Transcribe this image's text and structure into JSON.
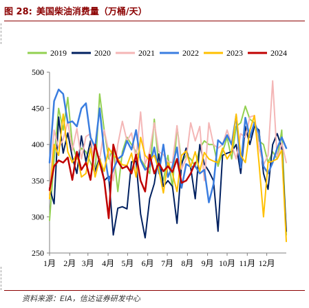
{
  "title": {
    "number": "图 28:",
    "text": "美国柴油消费量（万桶/天）"
  },
  "footer": {
    "source": "资料来源：EIA，信达证券研发中心"
  },
  "chart_data": {
    "type": "line",
    "title": "美国柴油消费量（万桶/天）",
    "xlabel": "",
    "ylabel": "",
    "ylim": [
      250,
      500
    ],
    "yticks": [
      250,
      300,
      350,
      400,
      450,
      500
    ],
    "xlim": [
      1,
      53
    ],
    "xticks": [
      {
        "label": "1月",
        "week": 1
      },
      {
        "label": "2月",
        "week": 5.43
      },
      {
        "label": "3月",
        "week": 9.43
      },
      {
        "label": "4月",
        "week": 13.86
      },
      {
        "label": "5月",
        "week": 18.14
      },
      {
        "label": "6月",
        "week": 22.57
      },
      {
        "label": "7月",
        "week": 26.86
      },
      {
        "label": "8月",
        "week": 31.29
      },
      {
        "label": "9月",
        "week": 35.71
      },
      {
        "label": "10月",
        "week": 40
      },
      {
        "label": "11月",
        "week": 44.43
      },
      {
        "label": "12月",
        "week": 48.71
      }
    ],
    "grid": false,
    "legend_position": "top",
    "series": [
      {
        "name": "2019",
        "color": "#92d050",
        "width": 2,
        "values": [
          295,
          380,
          450,
          420,
          465,
          400,
          380,
          395,
          390,
          375,
          360,
          470,
          420,
          380,
          395,
          335,
          390,
          410,
          400,
          390,
          380,
          370,
          360,
          435,
          370,
          350,
          385,
          340,
          425,
          375,
          385,
          380,
          370,
          395,
          405,
          400,
          400,
          370,
          390,
          410,
          380,
          425,
          430,
          453,
          435,
          430,
          405,
          400,
          375,
          390,
          380,
          420,
          275
        ]
      },
      {
        "name": "2020",
        "color": "#002060",
        "width": 2,
        "values": [
          340,
          318,
          438,
          388,
          416,
          382,
          360,
          412,
          376,
          405,
          362,
          383,
          350,
          356,
          275,
          312,
          314,
          311,
          376,
          377,
          304,
          271,
          325,
          346,
          387,
          342,
          350,
          342,
          291,
          372,
          395,
          368,
          325,
          400,
          373,
          363,
          350,
          280,
          385,
          388,
          390,
          400,
          360,
          425,
          400,
          425,
          420,
          360,
          338,
          400,
          415,
          396,
          280
        ]
      },
      {
        "name": "2021",
        "color": "#f4b6b6",
        "width": 2,
        "values": [
          330,
          420,
          395,
          407,
          432,
          392,
          422,
          380,
          411,
          415,
          356,
          380,
          420,
          390,
          350,
          400,
          432,
          405,
          416,
          380,
          445,
          373,
          390,
          430,
          390,
          386,
          376,
          375,
          426,
          366,
          380,
          430,
          405,
          425,
          350,
          430,
          400,
          395,
          400,
          420,
          400,
          380,
          415,
          410,
          438,
          440,
          395,
          372,
          385,
          488,
          380,
          402,
          375
        ]
      },
      {
        "name": "2022",
        "color": "#3a7de0",
        "width": 2.5,
        "values": [
          375,
          460,
          476,
          470,
          430,
          432,
          425,
          450,
          457,
          410,
          396,
          450,
          390,
          350,
          365,
          380,
          385,
          405,
          393,
          420,
          378,
          365,
          370,
          396,
          360,
          400,
          355,
          370,
          396,
          340,
          373,
          369,
          370,
          360,
          365,
          320,
          345,
          406,
          400,
          413,
          400,
          440,
          368,
          437,
          410,
          430,
          415,
          370,
          360,
          375,
          395,
          410,
          395
        ]
      },
      {
        "name": "2023",
        "color": "#ffc000",
        "width": 2,
        "values": [
          325,
          400,
          385,
          442,
          390,
          375,
          388,
          355,
          360,
          395,
          355,
          380,
          363,
          395,
          385,
          380,
          372,
          371,
          388,
          355,
          410,
          385,
          378,
          385,
          365,
          333,
          375,
          360,
          335,
          385,
          391,
          369,
          390,
          363,
          389,
          380,
          377,
          375,
          395,
          380,
          390,
          442,
          385,
          375,
          420,
          440,
          375,
          300,
          375,
          377,
          380,
          392,
          266
        ]
      },
      {
        "name": "2024",
        "color": "#c00000",
        "width": 2.5,
        "values": [
          337,
          370,
          378,
          375,
          382,
          351,
          390,
          365,
          375,
          351,
          400,
          375,
          351,
          298,
          400,
          377,
          367,
          370,
          360,
          386,
          350,
          335,
          386,
          360,
          374,
          363,
          370,
          362,
          380,
          347,
          350,
          360,
          375
        ]
      }
    ]
  }
}
